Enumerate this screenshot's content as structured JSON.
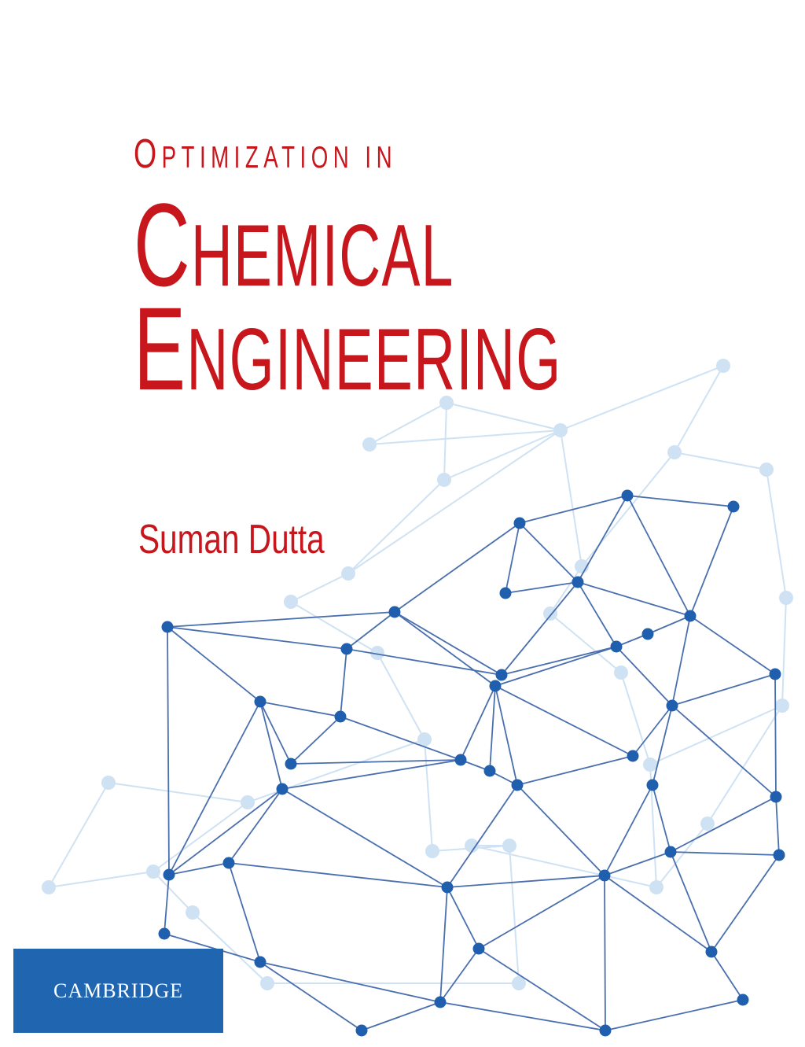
{
  "cover": {
    "title_line1_first": "O",
    "title_line1_rest": "PTIMIZATION  IN",
    "title_line2_first": "C",
    "title_line2_rest": "HEMICAL",
    "title_line3_first": "E",
    "title_line3_rest": "NGINEERING",
    "author": "Suman Dutta",
    "publisher_logo": "CAMBRIDGE"
  },
  "colors": {
    "title": "#c8161d",
    "network_node": "#1f5fae",
    "network_edge": "#4a6fae",
    "network_faint": "#cfe2f3",
    "logo_background": "#1f65b0"
  },
  "decoration": "network-graph"
}
